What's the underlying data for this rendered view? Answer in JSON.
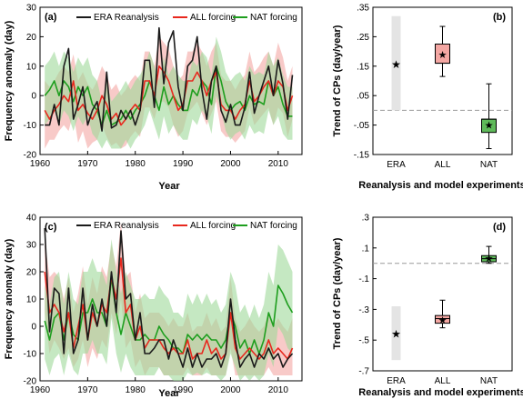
{
  "colors": {
    "era": "#1a1a1a",
    "all": "#e8281e",
    "nat": "#1e9e1e",
    "all_band": "#f4a7a3",
    "nat_band": "#9fd89a",
    "era_bar": "#e4e4e4",
    "all_box": "#f4a7a3",
    "nat_box": "#5fba5a",
    "zero_line": "#999999"
  },
  "chart_data": [
    {
      "type": "line",
      "panel_label": "(a)",
      "xlabel": "Year",
      "ylabel": "Frequency anomaly (day)",
      "xlim": [
        1960,
        2015
      ],
      "ylim": [
        -20,
        30
      ],
      "xticks": [
        1960,
        1970,
        1980,
        1990,
        2000,
        2010
      ],
      "yticks": [
        -20,
        -10,
        0,
        10,
        20,
        30
      ],
      "legend": [
        "ERA Reanalysis",
        "ALL forcing",
        "NAT forcing"
      ],
      "legend_position": "top",
      "x": [
        1961,
        1962,
        1963,
        1964,
        1965,
        1966,
        1967,
        1968,
        1969,
        1970,
        1971,
        1972,
        1973,
        1974,
        1975,
        1976,
        1977,
        1978,
        1979,
        1980,
        1981,
        1982,
        1983,
        1984,
        1985,
        1986,
        1987,
        1988,
        1989,
        1990,
        1991,
        1992,
        1993,
        1994,
        1995,
        1996,
        1997,
        1998,
        1999,
        2000,
        2001,
        2002,
        2003,
        2004,
        2005,
        2006,
        2007,
        2008,
        2009,
        2010,
        2011,
        2012,
        2013
      ],
      "series": [
        {
          "name": "ERA Reanalysis",
          "values": [
            -10,
            -10,
            -3,
            -10,
            10,
            16,
            -8,
            -3,
            3,
            -10,
            -5,
            -2,
            -12,
            8,
            -11,
            -10,
            -5,
            -8,
            -5,
            -10,
            -5,
            12,
            12,
            -4,
            23,
            4,
            18,
            22,
            3,
            -5,
            10,
            12,
            20,
            2,
            -8,
            5,
            10,
            -5,
            -9,
            -3,
            -10,
            -10,
            -4,
            8,
            -6,
            0,
            5,
            10,
            0,
            12,
            4,
            -8,
            7
          ]
        },
        {
          "name": "ALL forcing",
          "values": [
            -5,
            -8,
            -5,
            -3,
            0,
            -2,
            5,
            -5,
            -3,
            -6,
            -8,
            -5,
            0,
            -3,
            -8,
            -6,
            -10,
            -8,
            -5,
            -3,
            -5,
            5,
            5,
            0,
            10,
            8,
            5,
            0,
            -5,
            -3,
            5,
            5,
            8,
            5,
            0,
            5,
            8,
            -3,
            -5,
            -5,
            -8,
            -5,
            -3,
            5,
            -2,
            0,
            3,
            5,
            0,
            5,
            3,
            -5,
            0
          ]
        },
        {
          "name": "NAT forcing",
          "values": [
            0,
            2,
            5,
            0,
            5,
            3,
            -2,
            3,
            0,
            3,
            -3,
            -5,
            -10,
            -5,
            -10,
            -9,
            -8,
            -5,
            -8,
            -5,
            -3,
            0,
            5,
            0,
            -5,
            3,
            -3,
            0,
            -3,
            -5,
            -5,
            2,
            0,
            5,
            3,
            -3,
            10,
            5,
            -2,
            -5,
            -3,
            -2,
            -5,
            0,
            -3,
            -2,
            -3,
            5,
            0,
            3,
            -3,
            -7,
            -7
          ]
        }
      ],
      "bands": [
        {
          "name": "ALL forcing",
          "lower": [
            -18,
            -15,
            -15,
            -12,
            -10,
            -12,
            -6,
            -16,
            -12,
            -18,
            -16,
            -15,
            -10,
            -14,
            -17,
            -16,
            -18,
            -17,
            -14,
            -12,
            -14,
            -4,
            -4,
            -8,
            -2,
            -2,
            -4,
            -10,
            -14,
            -12,
            -6,
            -4,
            -2,
            -6,
            -10,
            -6,
            -2,
            -12,
            -14,
            -14,
            -16,
            -14,
            -12,
            -4,
            -10,
            -8,
            -6,
            -4,
            -10,
            -4,
            -6,
            -14,
            -8
          ],
          "upper": [
            5,
            3,
            5,
            8,
            10,
            8,
            14,
            5,
            8,
            4,
            2,
            5,
            10,
            7,
            2,
            4,
            0,
            2,
            5,
            7,
            5,
            15,
            15,
            10,
            20,
            18,
            16,
            10,
            5,
            7,
            15,
            15,
            18,
            15,
            10,
            15,
            18,
            7,
            5,
            5,
            2,
            5,
            7,
            15,
            8,
            10,
            13,
            15,
            10,
            18,
            13,
            5,
            10
          ]
        },
        {
          "name": "NAT forcing",
          "lower": [
            -10,
            -8,
            -5,
            -10,
            -5,
            -7,
            -12,
            -7,
            -10,
            -7,
            -13,
            -15,
            -18,
            -15,
            -18,
            -18,
            -18,
            -15,
            -18,
            -15,
            -13,
            -10,
            -5,
            -10,
            -15,
            -7,
            -13,
            -10,
            -13,
            -15,
            -15,
            -8,
            -10,
            -5,
            -7,
            -13,
            0,
            -5,
            -12,
            -15,
            -13,
            -12,
            -15,
            -10,
            -13,
            -12,
            -13,
            -5,
            -10,
            -7,
            -13,
            -15,
            -15
          ],
          "upper": [
            10,
            12,
            15,
            10,
            15,
            13,
            8,
            13,
            10,
            13,
            7,
            5,
            -2,
            5,
            -2,
            0,
            2,
            5,
            2,
            5,
            7,
            10,
            15,
            10,
            5,
            13,
            7,
            10,
            7,
            5,
            5,
            12,
            10,
            15,
            13,
            7,
            20,
            15,
            8,
            5,
            7,
            8,
            5,
            10,
            7,
            8,
            7,
            15,
            10,
            13,
            7,
            3,
            3
          ]
        }
      ]
    },
    {
      "type": "box",
      "panel_label": "(b)",
      "xlabel": "Reanalysis and model experiments",
      "ylabel": "Trend of CPs (day/year)",
      "categories": [
        "ERA",
        "ALL",
        "NAT"
      ],
      "ylim": [
        -0.15,
        0.35
      ],
      "yticks": [
        -0.15,
        -0.05,
        0.05,
        0.15,
        0.25,
        0.35
      ],
      "era": {
        "value": 0.155,
        "range": [
          0.0,
          0.32
        ]
      },
      "all": {
        "whisker_low": 0.115,
        "q1": 0.16,
        "q3": 0.225,
        "whisker_high": 0.285,
        "median": 0.16,
        "mean": 0.19
      },
      "nat": {
        "whisker_low": -0.13,
        "q1": -0.075,
        "q3": -0.03,
        "whisker_high": 0.09,
        "median": -0.03,
        "mean": -0.05
      },
      "zero_line": 0
    },
    {
      "type": "line",
      "panel_label": "(c)",
      "xlabel": "Year",
      "ylabel": "Frequency anomaly (day)",
      "xlim": [
        1960,
        2015
      ],
      "ylim": [
        -20,
        40
      ],
      "xticks": [
        1960,
        1970,
        1980,
        1990,
        2000,
        2010
      ],
      "yticks": [
        -20,
        -10,
        0,
        10,
        20,
        30,
        40
      ],
      "legend": [
        "ERA Reanalysis",
        "ALL forcing",
        "NAT forcing"
      ],
      "legend_position": "top",
      "x": [
        1961,
        1962,
        1963,
        1964,
        1965,
        1966,
        1967,
        1968,
        1969,
        1970,
        1971,
        1972,
        1973,
        1974,
        1975,
        1976,
        1977,
        1978,
        1979,
        1980,
        1981,
        1982,
        1983,
        1984,
        1985,
        1986,
        1987,
        1988,
        1989,
        1990,
        1991,
        1992,
        1993,
        1994,
        1995,
        1996,
        1997,
        1998,
        1999,
        2000,
        2001,
        2002,
        2003,
        2004,
        2005,
        2006,
        2007,
        2008,
        2009,
        2010,
        2011,
        2012,
        2013
      ],
      "series": [
        {
          "name": "ERA Reanalysis",
          "values": [
            36,
            -2,
            14,
            12,
            -10,
            14,
            -10,
            -5,
            14,
            -5,
            8,
            0,
            10,
            0,
            20,
            5,
            35,
            10,
            12,
            -5,
            5,
            -10,
            -10,
            -8,
            -5,
            -5,
            -12,
            -5,
            -10,
            -15,
            -8,
            -15,
            -10,
            -15,
            -12,
            -12,
            -10,
            -15,
            -10,
            10,
            -5,
            -15,
            -12,
            -10,
            -15,
            -10,
            -12,
            -8,
            -12,
            -10,
            -15,
            -12,
            -10
          ]
        },
        {
          "name": "ALL forcing",
          "values": [
            20,
            5,
            8,
            5,
            -2,
            5,
            -8,
            0,
            8,
            -5,
            5,
            0,
            8,
            5,
            18,
            10,
            25,
            5,
            8,
            -5,
            0,
            -8,
            -5,
            -5,
            -5,
            -8,
            -10,
            -8,
            -10,
            -10,
            -5,
            -12,
            -10,
            -10,
            -5,
            -10,
            -8,
            -12,
            -10,
            5,
            -8,
            -12,
            -10,
            -8,
            -10,
            -12,
            -10,
            -5,
            -10,
            -8,
            -10,
            -12,
            -8
          ]
        },
        {
          "name": "NAT forcing",
          "values": [
            2,
            -5,
            3,
            5,
            -5,
            5,
            -3,
            -5,
            5,
            5,
            10,
            5,
            5,
            0,
            18,
            5,
            -3,
            5,
            0,
            -5,
            -5,
            -3,
            -5,
            -5,
            0,
            -3,
            -5,
            -8,
            -8,
            -10,
            -3,
            -5,
            -3,
            -5,
            -3,
            -5,
            -5,
            -8,
            -5,
            5,
            0,
            -8,
            -5,
            -10,
            -5,
            -10,
            -5,
            5,
            0,
            15,
            12,
            8,
            5
          ]
        }
      ],
      "bands": [
        {
          "name": "ALL forcing",
          "lower": [
            5,
            -10,
            -5,
            -8,
            -12,
            -8,
            -15,
            -12,
            -5,
            -15,
            -8,
            -12,
            -5,
            -8,
            5,
            -3,
            10,
            -8,
            -5,
            -15,
            -12,
            -18,
            -15,
            -15,
            -15,
            -18,
            -18,
            -18,
            -18,
            -18,
            -15,
            -18,
            -18,
            -18,
            -15,
            -18,
            -18,
            -18,
            -18,
            -8,
            -18,
            -18,
            -18,
            -18,
            -18,
            -18,
            -18,
            -15,
            -18,
            -18,
            -18,
            -18,
            -18
          ],
          "upper": [
            32,
            18,
            20,
            18,
            10,
            18,
            5,
            12,
            22,
            8,
            18,
            12,
            22,
            18,
            30,
            22,
            38,
            18,
            20,
            5,
            12,
            3,
            5,
            5,
            5,
            3,
            0,
            3,
            0,
            0,
            5,
            -2,
            0,
            0,
            5,
            0,
            3,
            -2,
            0,
            18,
            3,
            -2,
            0,
            3,
            0,
            -2,
            0,
            5,
            0,
            3,
            0,
            -2,
            3
          ]
        },
        {
          "name": "NAT forcing",
          "lower": [
            -12,
            -18,
            -12,
            -10,
            -18,
            -10,
            -16,
            -18,
            -10,
            -10,
            -5,
            -10,
            -10,
            -14,
            3,
            -10,
            -17,
            -10,
            -15,
            -18,
            -18,
            -18,
            -18,
            -18,
            -15,
            -18,
            -18,
            -20,
            -20,
            -20,
            -17,
            -18,
            -17,
            -18,
            -17,
            -18,
            -18,
            -20,
            -18,
            -10,
            -15,
            -20,
            -18,
            -20,
            -18,
            -20,
            -18,
            -10,
            -15,
            0,
            -3,
            -8,
            -10
          ],
          "upper": [
            15,
            8,
            18,
            20,
            8,
            20,
            10,
            8,
            20,
            20,
            25,
            20,
            20,
            15,
            32,
            20,
            12,
            20,
            15,
            10,
            10,
            12,
            10,
            10,
            15,
            12,
            10,
            5,
            5,
            3,
            12,
            8,
            12,
            8,
            12,
            8,
            10,
            5,
            8,
            20,
            15,
            5,
            8,
            3,
            8,
            3,
            8,
            20,
            15,
            30,
            28,
            24,
            20
          ]
        }
      ]
    },
    {
      "type": "box",
      "panel_label": "(d)",
      "xlabel": "Reanalysis and model experiments",
      "ylabel": "Trend of CPs (day/year)",
      "categories": [
        "ERA",
        "ALL",
        "NAT"
      ],
      "ylim": [
        -0.7,
        0.3
      ],
      "yticks": [
        -0.7,
        -0.5,
        -0.3,
        -0.1,
        0.1,
        0.3
      ],
      "era": {
        "value": -0.46,
        "range": [
          -0.63,
          -0.28
        ]
      },
      "all": {
        "whisker_low": -0.42,
        "q1": -0.39,
        "q3": -0.34,
        "whisker_high": -0.24,
        "median": -0.36,
        "mean": -0.37
      },
      "nat": {
        "whisker_low": 0.0,
        "q1": 0.01,
        "q3": 0.05,
        "whisker_high": 0.11,
        "median": 0.03,
        "mean": 0.035
      },
      "zero_line": 0
    }
  ]
}
